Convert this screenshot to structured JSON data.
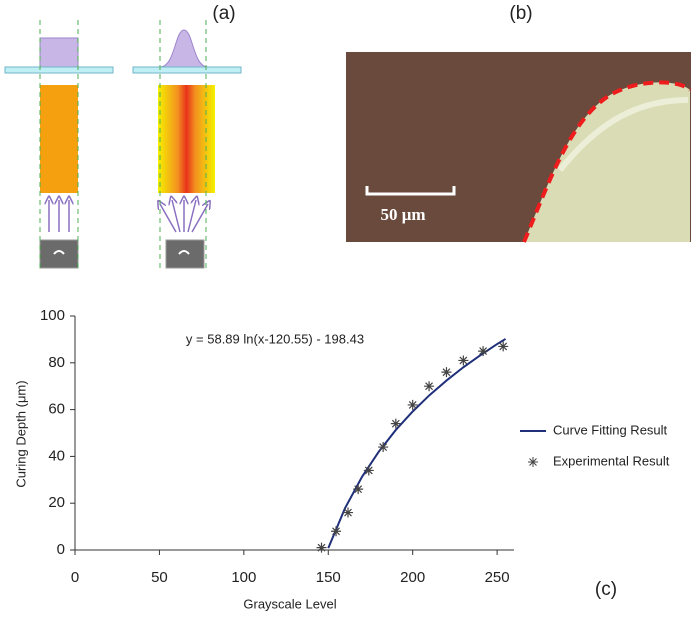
{
  "panels": {
    "a": "(a)",
    "b": "(b)",
    "c": "(c)",
    "scale_bar": "50 μm"
  },
  "chart_data": {
    "type": "line",
    "annotation": "y = 58.89 ln(x-120.55) - 198.43",
    "x_label": "Grayscale Level",
    "y_label": "Curing Depth (μm)",
    "xlim": [
      0,
      260
    ],
    "xticks": [
      0,
      50,
      100,
      150,
      200,
      250
    ],
    "ylim": [
      0,
      100
    ],
    "yticks": [
      0,
      20,
      40,
      60,
      80,
      100
    ],
    "series": [
      {
        "name": "Curve Fitting Result",
        "color": "#1f2f7a",
        "style": "line",
        "x": [
          150,
          160,
          170,
          180,
          190,
          200,
          210,
          220,
          230,
          240,
          250,
          255
        ],
        "values": [
          0.8,
          18.0,
          31.3,
          42.1,
          51.3,
          59.2,
          66.2,
          72.4,
          78.1,
          83.2,
          88.0,
          90.2
        ]
      },
      {
        "name": "Experimental Result",
        "color": "#444444",
        "style": "asterisk",
        "x": [
          146,
          154.6,
          161.7,
          167.7,
          174,
          182.5,
          190,
          200,
          209.7,
          220,
          230,
          241.7,
          253.6
        ],
        "values": [
          1,
          8,
          16,
          26,
          34,
          44,
          54,
          62,
          70,
          76,
          81,
          85,
          87
        ]
      }
    ]
  }
}
